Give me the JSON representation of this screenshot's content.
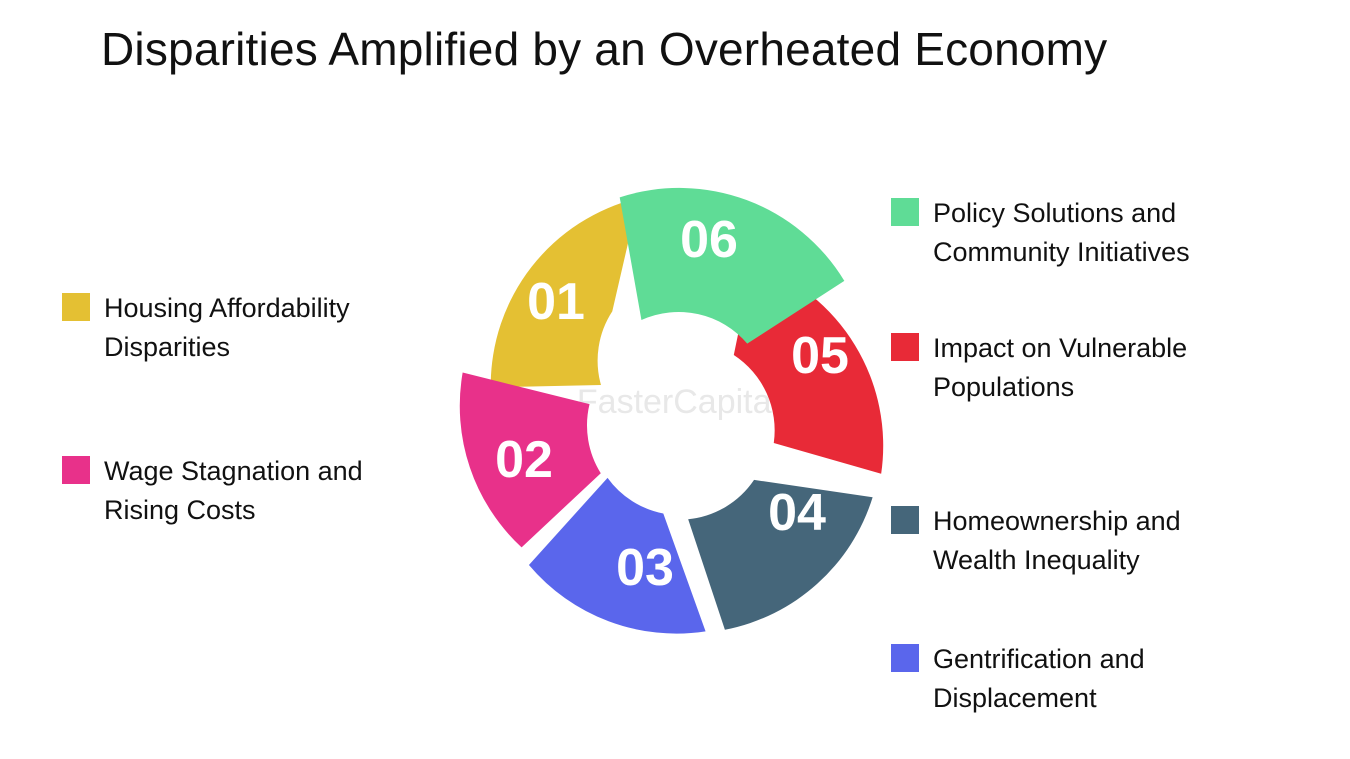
{
  "title": "Disparities Amplified by an Overheated Economy",
  "watermark": "FasterCapital",
  "segments": [
    {
      "number": "01",
      "label": "Housing Affordability\nDisparities",
      "color": "#e4c033"
    },
    {
      "number": "02",
      "label": "Wage Stagnation and\nRising Costs",
      "color": "#e8318a"
    },
    {
      "number": "03",
      "label": "Gentrification and\nDisplacement",
      "color": "#5a66ec"
    },
    {
      "number": "04",
      "label": "Homeownership and\nWealth Inequality",
      "color": "#45667a"
    },
    {
      "number": "05",
      "label": "Impact on Vulnerable\nPopulations",
      "color": "#e82a37"
    },
    {
      "number": "06",
      "label": "Policy Solutions and\nCommunity Initiatives",
      "color": "#5fdc96"
    }
  ]
}
